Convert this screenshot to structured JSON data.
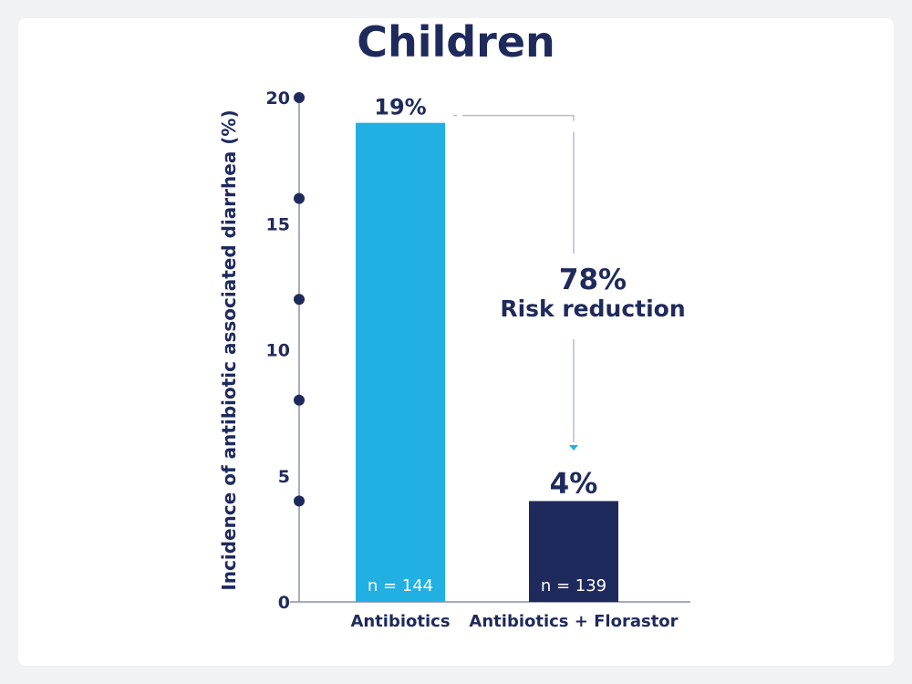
{
  "chart_data": {
    "type": "bar",
    "title": "Children",
    "ylabel": "Incidence of antibiotic associated diarrhea (%)",
    "xlabel": "",
    "ylim": [
      0,
      20
    ],
    "yticks": [
      0,
      5,
      10,
      15,
      20
    ],
    "ytick_labels": [
      "0",
      "5",
      "10",
      "15",
      "20"
    ],
    "dot_markers": [
      4,
      8,
      12,
      16,
      20
    ],
    "grid": false,
    "categories": [
      "Antibiotics",
      "Antibiotics + Florastor"
    ],
    "values": [
      19,
      4
    ],
    "data_labels": [
      "19%",
      "4%"
    ],
    "sample_sizes": [
      "n = 144",
      "n = 139"
    ],
    "colors": [
      "#22b0e3",
      "#1f2a5c"
    ],
    "annotation": {
      "value": "78%",
      "text": "Risk reduction"
    }
  },
  "colors": {
    "text": "#1f2a5c",
    "axis": "#8a8fae",
    "background": "#f1f2f4",
    "card": "#ffffff"
  }
}
